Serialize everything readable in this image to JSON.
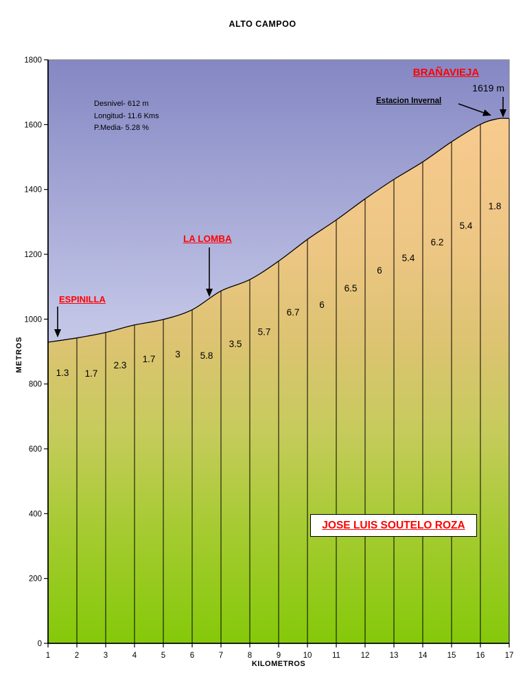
{
  "title": "ALTO CAMPOO",
  "stats": {
    "line1": "Desnivel- 612 m",
    "line2": "Longitud- 11.6 Kms",
    "line3": "P.Media- 5.28 %"
  },
  "annotations": {
    "espinilla": "ESPINILLA",
    "la_lomba": "LA LOMBA",
    "branavieja": "BRAÑAVIEJA",
    "summit_altitude": "1619 m",
    "estacion_invernal": "Estacion Invernal",
    "author": "JOSE LUIS SOUTELO ROZA"
  },
  "axes": {
    "x_label": "KILOMETROS",
    "y_label": "METROS"
  },
  "colors": {
    "annotation_red": "#ff0000",
    "text_black": "#000000",
    "sky_top": "#8487c3",
    "sky_mid": "#c2c5e6",
    "sky_bottom": "#e2e3f6",
    "mountain_top": "#f8ca8e",
    "mountain_upper": "#edc684",
    "mountain_mid": "#ddc372",
    "mountain_lower": "#c6cb5c",
    "mountain_green": "#a3cb2e",
    "mountain_bottom": "#85c90a",
    "outline": "#000000",
    "border_gray": "#8a8a8a"
  },
  "chart_data": {
    "type": "area",
    "title": "ALTO CAMPOO",
    "xlabel": "KILOMETROS",
    "ylabel": "METROS",
    "xlim": [
      1,
      17
    ],
    "ylim": [
      0,
      1800
    ],
    "x_ticks": [
      1,
      2,
      3,
      4,
      5,
      6,
      7,
      8,
      9,
      10,
      11,
      12,
      13,
      14,
      15,
      16,
      17
    ],
    "y_ticks": [
      0,
      200,
      400,
      600,
      800,
      1000,
      1200,
      1400,
      1600,
      1800
    ],
    "grid": false,
    "legend": false,
    "profile": {
      "km": [
        1,
        2,
        3,
        4,
        5,
        6,
        7,
        8,
        9,
        10,
        11,
        12,
        13,
        14,
        15,
        16,
        16.6,
        17
      ],
      "elevation_m": [
        929,
        942,
        959,
        982,
        999,
        1029,
        1087,
        1122,
        1179,
        1246,
        1306,
        1371,
        1431,
        1485,
        1547,
        1601,
        1618,
        1619
      ]
    },
    "segments": {
      "start_km": [
        1,
        2,
        3,
        4,
        5,
        6,
        7,
        8,
        9,
        10,
        11,
        12,
        13,
        14,
        15,
        16
      ],
      "gradient_pct": [
        1.3,
        1.7,
        2.3,
        1.7,
        3,
        5.8,
        3.5,
        5.7,
        6.7,
        6,
        6.5,
        6,
        5.4,
        6.2,
        5.4,
        1.8
      ]
    },
    "summit_elevation_m": 1619,
    "total_ascent_m": 612,
    "length_km": 11.6,
    "avg_gradient_pct": 5.28,
    "landmarks": [
      {
        "name": "ESPINILLA",
        "km": 1.3
      },
      {
        "name": "LA LOMBA",
        "km": 6.6
      },
      {
        "name": "BRAÑAVIEJA - Estacion Invernal",
        "km": 16.8
      }
    ]
  }
}
